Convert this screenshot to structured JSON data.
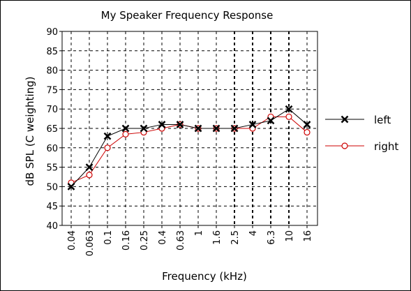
{
  "chart_data": {
    "type": "line",
    "title": "My Speaker Frequency Response",
    "xlabel": "Frequency (kHz)",
    "ylabel": "dB SPL (C weighting)",
    "categories": [
      "0.04",
      "0.063",
      "0.1",
      "0.16",
      "0.25",
      "0.4",
      "0.63",
      "1",
      "1.6",
      "2.5",
      "4",
      "6.3",
      "10",
      "16"
    ],
    "ylim": [
      40,
      90
    ],
    "yticks": [
      "40",
      "45",
      "50",
      "55",
      "60",
      "65",
      "70",
      "75",
      "80",
      "85",
      "90"
    ],
    "grid": true,
    "legend_position": "right",
    "series": [
      {
        "name": "left",
        "marker": "x",
        "color": "#000000",
        "values": [
          50,
          55,
          63,
          65,
          65,
          66,
          66,
          65,
          65,
          65,
          66,
          67,
          70,
          66
        ]
      },
      {
        "name": "right",
        "marker": "circle",
        "color": "#cc0000",
        "values": [
          51,
          53,
          60,
          63.5,
          64,
          65,
          66,
          65,
          65,
          65,
          65,
          68,
          68,
          64
        ]
      }
    ]
  }
}
